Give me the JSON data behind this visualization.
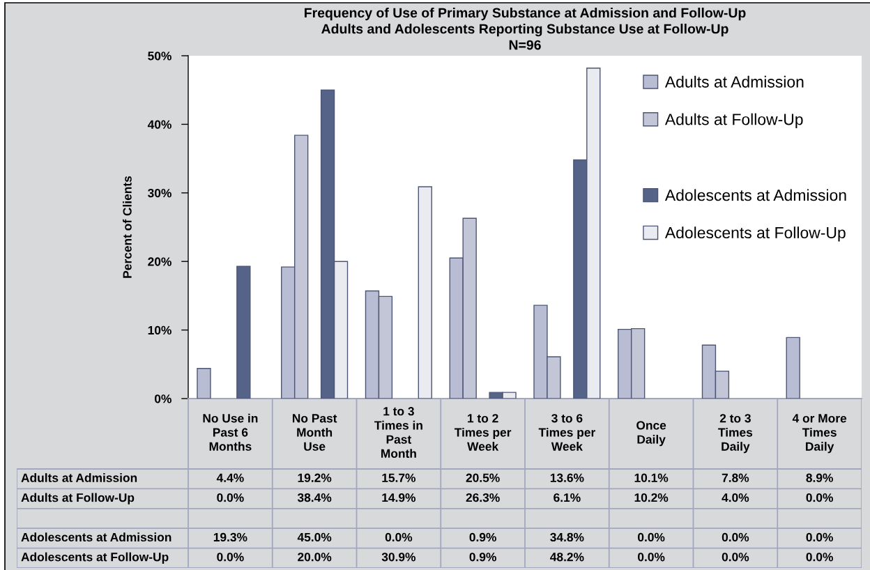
{
  "chart_data": {
    "type": "bar",
    "title": "Frequency of Use of Primary Substance at Admission and Follow-Up",
    "subtitle": "Adults and Adolescents Reporting Substance Use at Follow-Up\nN=96",
    "ylabel": "Percent of Clients",
    "categories": [
      "No Use in\nPast 6\nMonths",
      "No Past\nMonth\nUse",
      "1 to 3\nTimes in\nPast\nMonth",
      "1 to 2\nTimes per\nWeek",
      "3 to 6\nTimes per\nWeek",
      "Once\nDaily",
      "2 to 3\nTimes\nDaily",
      "4 or More\nTimes\nDaily"
    ],
    "series": [
      {
        "name": "Adults at Admission",
        "color": "#b8bdd4",
        "values": [
          4.4,
          19.2,
          15.7,
          20.5,
          13.6,
          10.1,
          7.8,
          8.9
        ],
        "value_labels": [
          "4.4%",
          "19.2%",
          "15.7%",
          "20.5%",
          "13.6%",
          "10.1%",
          "7.8%",
          "8.9%"
        ]
      },
      {
        "name": "Adults at Follow-Up",
        "color": "#c3c6d7",
        "values": [
          0.0,
          38.4,
          14.9,
          26.3,
          6.1,
          10.2,
          4.0,
          0.0
        ],
        "value_labels": [
          "0.0%",
          "38.4%",
          "14.9%",
          "26.3%",
          "6.1%",
          "10.2%",
          "4.0%",
          "0.0%"
        ]
      },
      {
        "values": [
          null,
          null,
          null,
          null,
          null,
          null,
          null,
          null
        ]
      },
      {
        "name": "Adolescents at Admission",
        "color": "#566389",
        "values": [
          19.3,
          45.0,
          0.0,
          0.9,
          34.8,
          0.0,
          0.0,
          0.0
        ],
        "value_labels": [
          "19.3%",
          "45.0%",
          "0.0%",
          "0.9%",
          "34.8%",
          "0.0%",
          "0.0%",
          "0.0%"
        ]
      },
      {
        "name": "Adolescents at Follow-Up",
        "color": "#eaebf1",
        "values": [
          0.0,
          20.0,
          30.9,
          0.9,
          48.2,
          0.0,
          0.0,
          0.0
        ],
        "value_labels": [
          "0.0%",
          "20.0%",
          "30.9%",
          "0.9%",
          "48.2%",
          "0.0%",
          "0.0%",
          "0.0%"
        ]
      }
    ],
    "ylim": [
      0,
      50
    ],
    "yticks": [
      {
        "value": 0,
        "label": "0%"
      },
      {
        "value": 10,
        "label": "10%"
      },
      {
        "value": 20,
        "label": "20%"
      },
      {
        "value": 30,
        "label": "30%"
      },
      {
        "value": 40,
        "label": "40%"
      },
      {
        "value": 50,
        "label": "50%"
      }
    ],
    "grid": false,
    "legend": "top right"
  }
}
